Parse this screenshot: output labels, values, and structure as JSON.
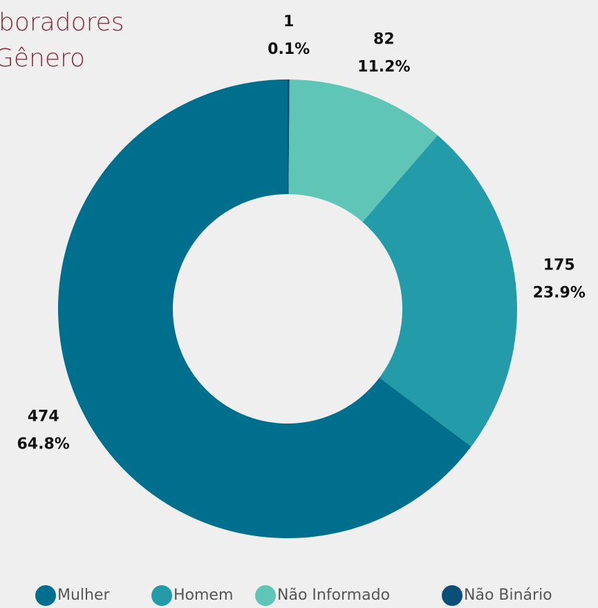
{
  "chart_data": {
    "type": "donut",
    "title_lines": [
      "boradores",
      "Gênero"
    ],
    "categories": [
      "Mulher",
      "Homem",
      "Não Informado",
      "Não Binário"
    ],
    "values": [
      474,
      175,
      82,
      1
    ],
    "percentages": [
      64.8,
      23.9,
      11.2,
      0.1
    ],
    "percentage_labels": [
      "64.8%",
      "23.9%",
      "11.2%",
      "0.1%"
    ],
    "colors": [
      "#006f8e",
      "#239ba8",
      "#5ec5b7",
      "#0b4f78"
    ],
    "legend": "bottom"
  }
}
